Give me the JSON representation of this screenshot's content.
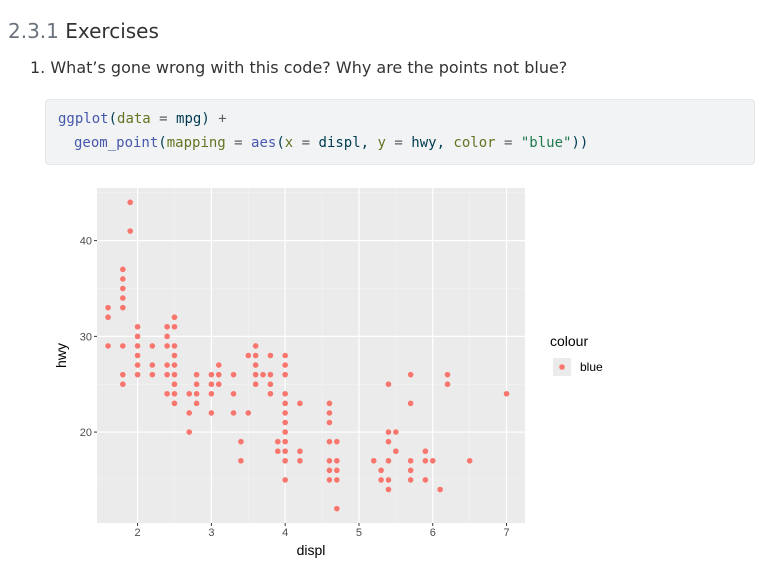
{
  "section": {
    "number": "2.3.1",
    "title": "Exercises"
  },
  "exercise": {
    "number": "1.",
    "text": "What’s gone wrong with this code? Why are the points not blue?"
  },
  "code": {
    "line1": {
      "fn": "ggplot",
      "open": "(",
      "arg": "data",
      "eq": " = ",
      "value": "mpg",
      "close": ")",
      "op": " +"
    },
    "line2": {
      "fn": "geom_point",
      "open": "(",
      "arg1": "mapping",
      "eq1": " = ",
      "fn2": "aes",
      "open2": "(",
      "arg2": "x",
      "eq2": " = ",
      "value2": "displ",
      "sep1": ", ",
      "arg3": "y",
      "eq3": " = ",
      "value3": "hwy",
      "sep2": ", ",
      "arg4": "color",
      "eq4": " = ",
      "str": "\"blue\"",
      "close": "))"
    }
  },
  "chart_data": {
    "type": "scatter",
    "xlabel": "displ",
    "ylabel": "hwy",
    "xlim": [
      1.45,
      7.25
    ],
    "ylim": [
      10.5,
      45.5
    ],
    "xticks": [
      2,
      3,
      4,
      5,
      6,
      7
    ],
    "yticks": [
      20,
      30,
      40
    ],
    "grid": true,
    "background": "#ebebeb",
    "point_color": "#f8766d",
    "legend": {
      "title": "colour",
      "entries": [
        "blue"
      ],
      "placement": "right"
    },
    "points": [
      [
        1.6,
        33
      ],
      [
        1.6,
        32
      ],
      [
        1.6,
        29
      ],
      [
        1.8,
        37
      ],
      [
        1.8,
        36
      ],
      [
        1.8,
        35
      ],
      [
        1.8,
        34
      ],
      [
        1.8,
        33
      ],
      [
        1.8,
        29
      ],
      [
        1.8,
        26
      ],
      [
        1.8,
        25
      ],
      [
        1.9,
        44
      ],
      [
        1.9,
        41
      ],
      [
        2.0,
        31
      ],
      [
        2.0,
        30
      ],
      [
        2.0,
        29
      ],
      [
        2.0,
        28
      ],
      [
        2.0,
        27
      ],
      [
        2.0,
        26
      ],
      [
        2.2,
        29
      ],
      [
        2.2,
        27
      ],
      [
        2.2,
        26
      ],
      [
        2.4,
        31
      ],
      [
        2.4,
        30
      ],
      [
        2.4,
        29
      ],
      [
        2.4,
        27
      ],
      [
        2.4,
        26
      ],
      [
        2.4,
        24
      ],
      [
        2.5,
        32
      ],
      [
        2.5,
        31
      ],
      [
        2.5,
        29
      ],
      [
        2.5,
        28
      ],
      [
        2.5,
        27
      ],
      [
        2.5,
        26
      ],
      [
        2.5,
        25
      ],
      [
        2.5,
        24
      ],
      [
        2.5,
        23
      ],
      [
        2.7,
        24
      ],
      [
        2.7,
        22
      ],
      [
        2.7,
        20
      ],
      [
        2.8,
        26
      ],
      [
        2.8,
        25
      ],
      [
        2.8,
        24
      ],
      [
        2.8,
        23
      ],
      [
        3.0,
        26
      ],
      [
        3.0,
        25
      ],
      [
        3.0,
        24
      ],
      [
        3.0,
        22
      ],
      [
        3.1,
        27
      ],
      [
        3.1,
        26
      ],
      [
        3.1,
        25
      ],
      [
        3.3,
        26
      ],
      [
        3.3,
        24
      ],
      [
        3.3,
        22
      ],
      [
        3.4,
        19
      ],
      [
        3.4,
        17
      ],
      [
        3.5,
        28
      ],
      [
        3.5,
        22
      ],
      [
        3.6,
        29
      ],
      [
        3.6,
        28
      ],
      [
        3.6,
        27
      ],
      [
        3.6,
        26
      ],
      [
        3.6,
        25
      ],
      [
        3.7,
        26
      ],
      [
        3.8,
        28
      ],
      [
        3.8,
        26
      ],
      [
        3.8,
        25
      ],
      [
        3.8,
        24
      ],
      [
        3.9,
        19
      ],
      [
        3.9,
        18
      ],
      [
        4.0,
        28
      ],
      [
        4.0,
        27
      ],
      [
        4.0,
        26
      ],
      [
        4.0,
        24
      ],
      [
        4.0,
        23
      ],
      [
        4.0,
        22
      ],
      [
        4.0,
        21
      ],
      [
        4.0,
        20
      ],
      [
        4.0,
        19
      ],
      [
        4.0,
        18
      ],
      [
        4.0,
        17
      ],
      [
        4.0,
        15
      ],
      [
        4.2,
        23
      ],
      [
        4.2,
        18
      ],
      [
        4.2,
        17
      ],
      [
        4.6,
        23
      ],
      [
        4.6,
        22
      ],
      [
        4.6,
        21
      ],
      [
        4.6,
        19
      ],
      [
        4.6,
        17
      ],
      [
        4.6,
        16
      ],
      [
        4.6,
        15
      ],
      [
        4.7,
        19
      ],
      [
        4.7,
        17
      ],
      [
        4.7,
        16
      ],
      [
        4.7,
        15
      ],
      [
        4.7,
        12
      ],
      [
        5.2,
        17
      ],
      [
        5.3,
        16
      ],
      [
        5.3,
        15
      ],
      [
        5.4,
        25
      ],
      [
        5.4,
        20
      ],
      [
        5.4,
        19
      ],
      [
        5.4,
        17
      ],
      [
        5.4,
        15
      ],
      [
        5.4,
        14
      ],
      [
        5.5,
        20
      ],
      [
        5.5,
        18
      ],
      [
        5.7,
        26
      ],
      [
        5.7,
        23
      ],
      [
        5.7,
        17
      ],
      [
        5.7,
        16
      ],
      [
        5.7,
        15
      ],
      [
        5.9,
        17
      ],
      [
        5.9,
        15
      ],
      [
        5.9,
        18
      ],
      [
        6.0,
        17
      ],
      [
        6.1,
        14
      ],
      [
        6.2,
        26
      ],
      [
        6.2,
        25
      ],
      [
        6.5,
        17
      ],
      [
        7.0,
        24
      ]
    ]
  }
}
